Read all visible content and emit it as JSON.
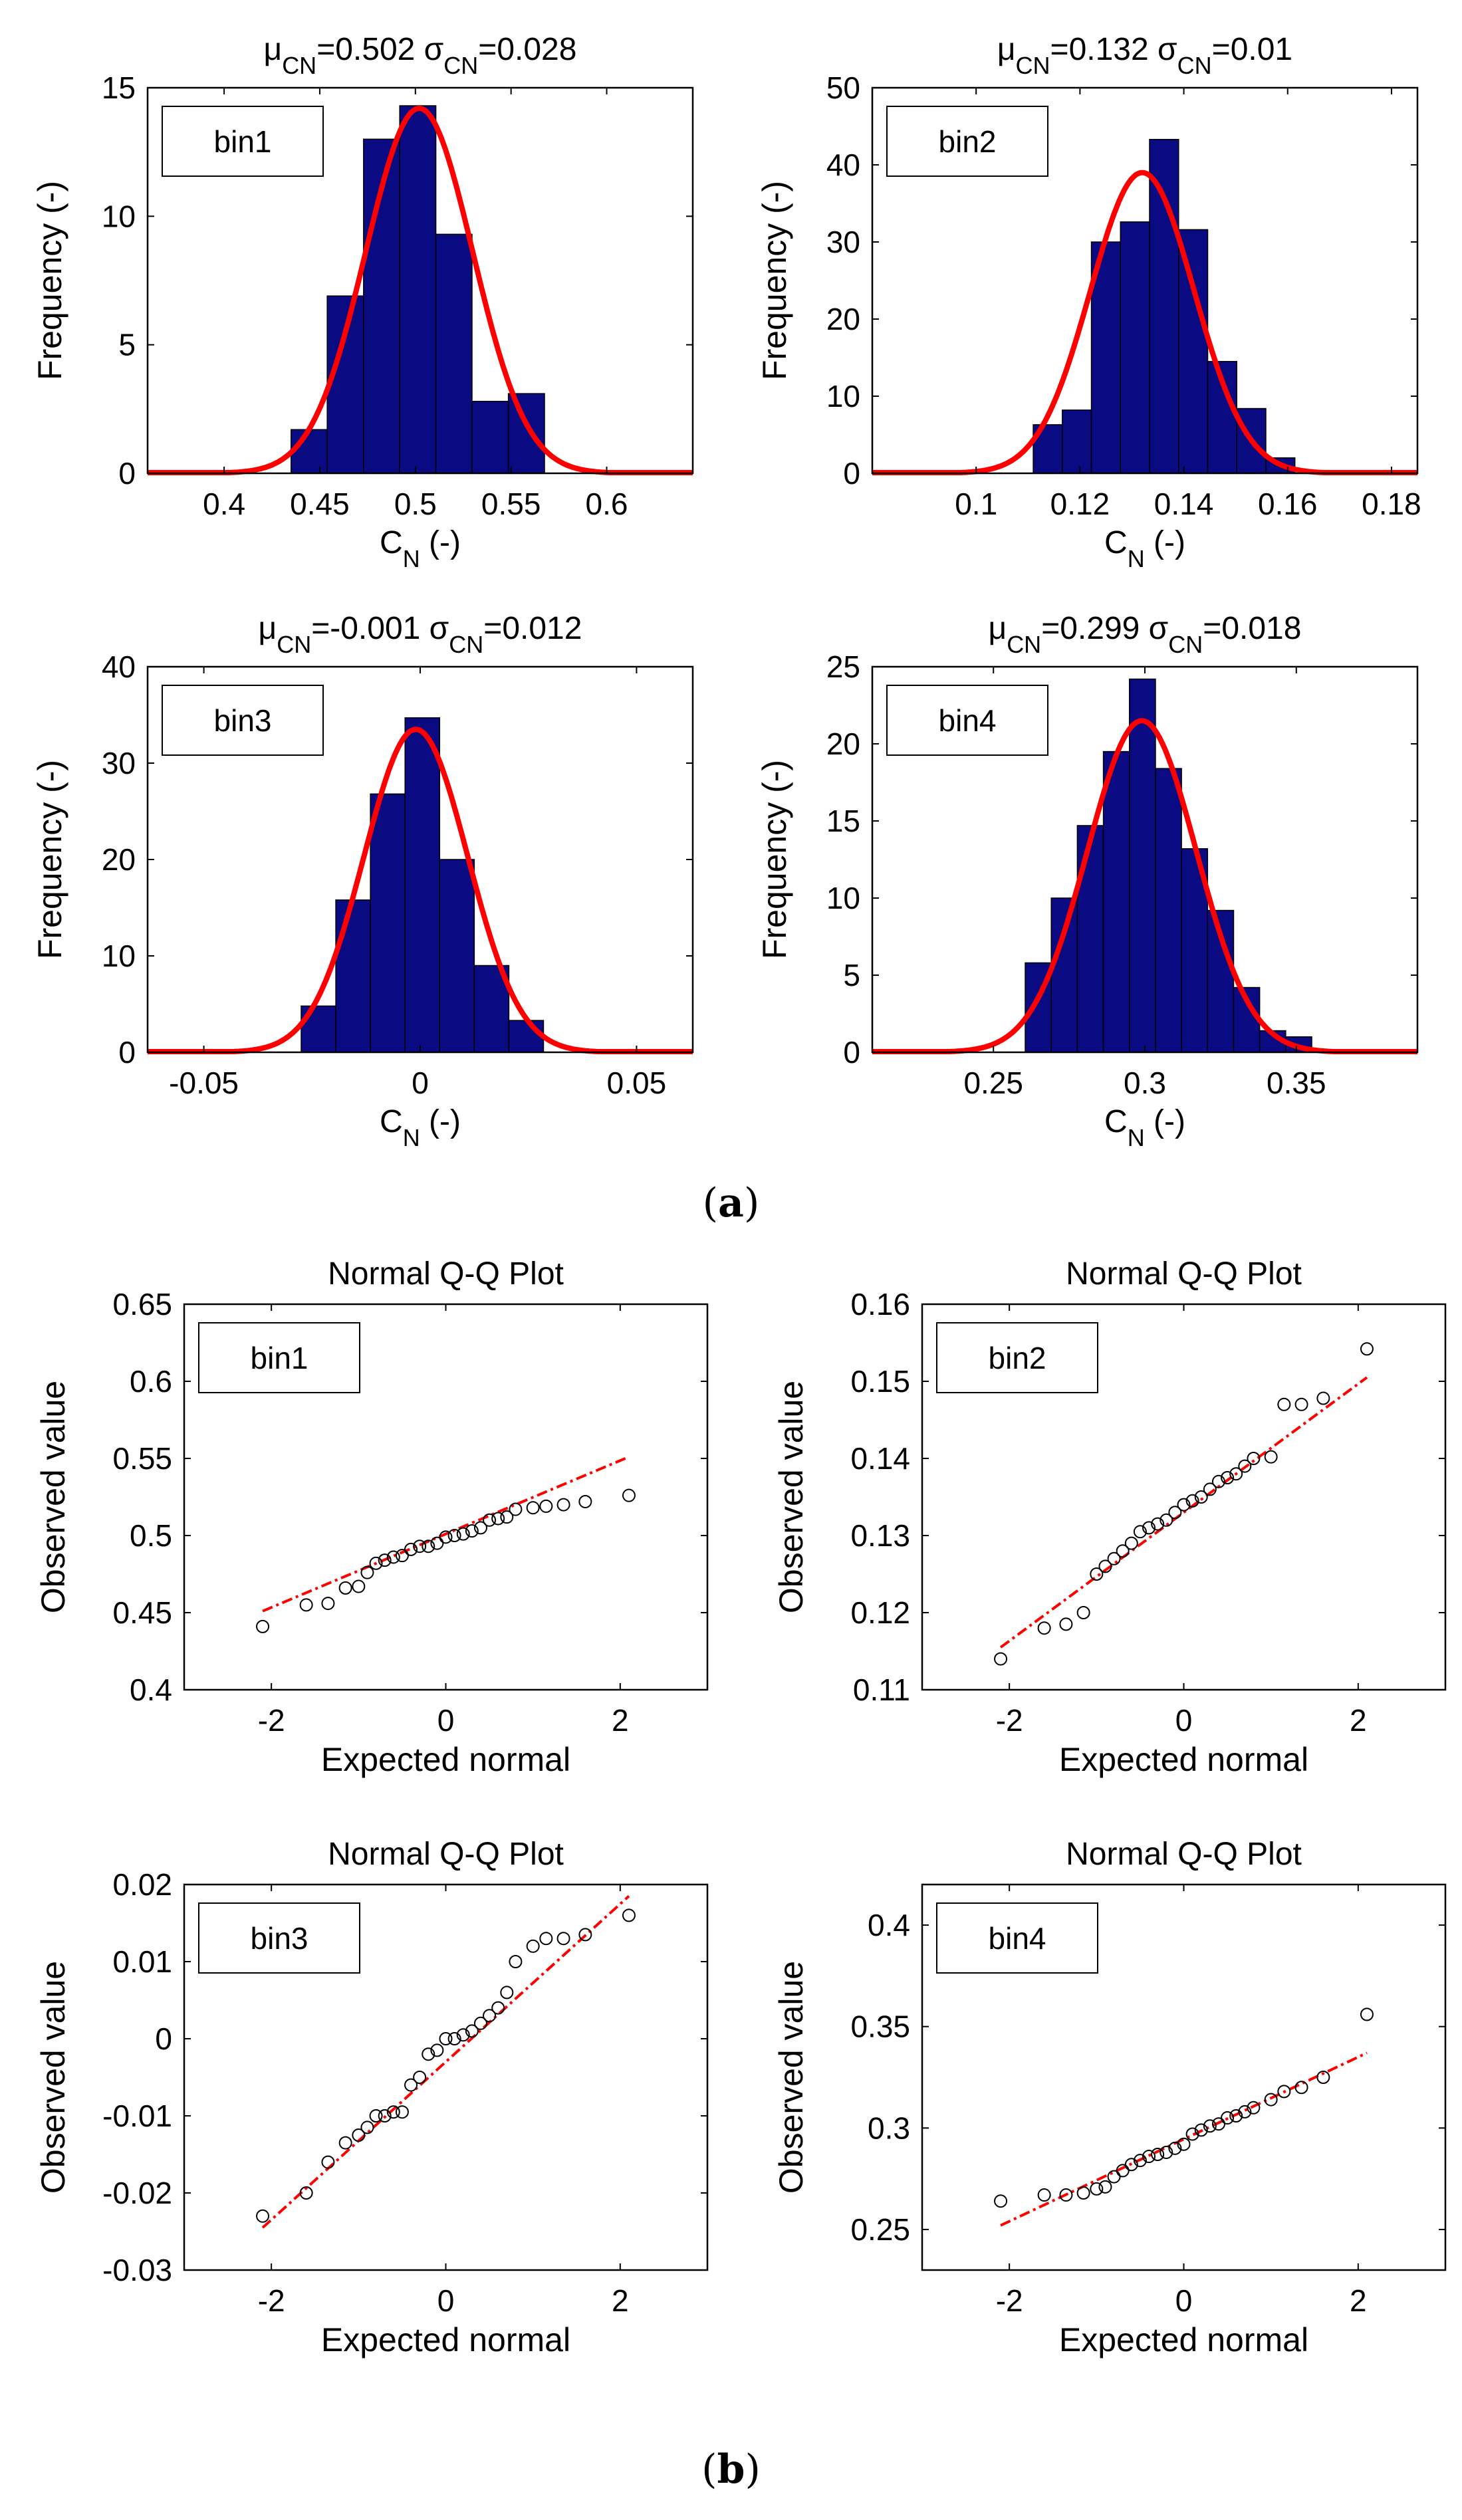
{
  "figure": {
    "label_a": "a",
    "label_b": "b",
    "histogram_ylabel": "Frequency (-)",
    "histogram_xlabel_main": "C",
    "histogram_xlabel_sub": "N",
    "histogram_xlabel_unit": " (-)",
    "qq_title": "Normal Q-Q Plot",
    "qq_xlabel": "Expected normal",
    "qq_ylabel": "Observed value",
    "hist_bar_color": "#0a0a82",
    "fit_line_color": "#ff0000"
  },
  "chart_data": [
    {
      "type": "bar",
      "id": "hist-bin1",
      "legend": "bin1",
      "title_mu": "0.502",
      "title_sigma": "0.028",
      "bin_edges": [
        0.435,
        0.4539,
        0.4729,
        0.4918,
        0.5107,
        0.5296,
        0.5486,
        0.5675
      ],
      "values": [
        1.7,
        6.9,
        13.0,
        14.3,
        9.3,
        2.8,
        3.1
      ],
      "fit_peak": 14.2,
      "xlim": [
        0.36,
        0.645
      ],
      "ylim": [
        0,
        15
      ],
      "xticks": [
        0.4,
        0.45,
        0.5,
        0.55,
        0.6
      ],
      "yticks": [
        0,
        5,
        10,
        15
      ]
    },
    {
      "type": "bar",
      "id": "hist-bin2",
      "legend": "bin2",
      "title_mu": "0.132",
      "title_sigma": "0.01",
      "bin_edges": [
        0.111,
        0.1166,
        0.1222,
        0.1278,
        0.1334,
        0.139,
        0.1446,
        0.1502,
        0.1558,
        0.1614
      ],
      "values": [
        6.3,
        8.2,
        30.0,
        32.6,
        43.3,
        31.6,
        14.5,
        8.4,
        2.0
      ],
      "fit_peak": 39.0,
      "xlim": [
        0.08,
        0.185
      ],
      "ylim": [
        0,
        50
      ],
      "xticks": [
        0.1,
        0.12,
        0.14,
        0.16,
        0.18
      ],
      "yticks": [
        0,
        10,
        20,
        30,
        40,
        50
      ]
    },
    {
      "type": "bar",
      "id": "hist-bin3",
      "legend": "bin3",
      "title_mu": "-0.001",
      "title_sigma": "0.012",
      "bin_edges": [
        -0.0275,
        -0.0195,
        -0.0115,
        -0.0035,
        0.0045,
        0.0125,
        0.0205,
        0.0285
      ],
      "values": [
        4.8,
        15.8,
        26.8,
        34.7,
        20.0,
        9.0,
        3.3
      ],
      "fit_peak": 33.5,
      "xlim": [
        -0.063,
        0.063
      ],
      "ylim": [
        0,
        40
      ],
      "xticks": [
        -0.05,
        0,
        0.05
      ],
      "yticks": [
        0,
        10,
        20,
        30,
        40
      ]
    },
    {
      "type": "bar",
      "id": "hist-bin4",
      "legend": "bin4",
      "title_mu": "0.299",
      "title_sigma": "0.018",
      "bin_edges": [
        0.2605,
        0.2691,
        0.2777,
        0.2863,
        0.2949,
        0.3035,
        0.3121,
        0.3207,
        0.3293,
        0.3379,
        0.3465,
        0.3551
      ],
      "values": [
        5.8,
        10.0,
        14.7,
        19.5,
        24.2,
        18.4,
        13.2,
        9.2,
        4.2,
        1.4,
        1.0
      ],
      "fit_peak": 21.5,
      "xlim": [
        0.21,
        0.39
      ],
      "ylim": [
        0,
        25
      ],
      "xticks": [
        0.25,
        0.3,
        0.35
      ],
      "yticks": [
        0,
        5,
        10,
        15,
        20,
        25
      ]
    },
    {
      "type": "scatter",
      "id": "qq-bin1",
      "legend": "bin1",
      "x": [
        -2.1,
        -1.6,
        -1.35,
        -1.15,
        -1.0,
        -0.9,
        -0.8,
        -0.7,
        -0.6,
        -0.5,
        -0.4,
        -0.3,
        -0.2,
        -0.1,
        0.0,
        0.1,
        0.2,
        0.3,
        0.4,
        0.5,
        0.6,
        0.7,
        0.8,
        1.0,
        1.15,
        1.35,
        1.6,
        2.1
      ],
      "y": [
        0.441,
        0.455,
        0.456,
        0.466,
        0.467,
        0.476,
        0.482,
        0.484,
        0.486,
        0.487,
        0.491,
        0.493,
        0.493,
        0.495,
        0.499,
        0.5,
        0.501,
        0.503,
        0.505,
        0.51,
        0.511,
        0.512,
        0.517,
        0.518,
        0.519,
        0.52,
        0.522,
        0.526
      ],
      "fit_line": {
        "x": [
          -2.1,
          2.1
        ],
        "y": [
          0.451,
          0.551
        ]
      },
      "xlim": [
        -3,
        3
      ],
      "ylim": [
        0.4,
        0.65
      ],
      "xticks": [
        -2,
        0,
        2
      ],
      "yticks": [
        0.4,
        0.45,
        0.5,
        0.55,
        0.6,
        0.65
      ]
    },
    {
      "type": "scatter",
      "id": "qq-bin2",
      "legend": "bin2",
      "x": [
        -2.1,
        -1.6,
        -1.35,
        -1.15,
        -1.0,
        -0.9,
        -0.8,
        -0.7,
        -0.6,
        -0.5,
        -0.4,
        -0.3,
        -0.2,
        -0.1,
        0.0,
        0.1,
        0.2,
        0.3,
        0.4,
        0.5,
        0.6,
        0.7,
        0.8,
        1.0,
        1.15,
        1.35,
        1.6,
        2.1
      ],
      "y": [
        0.114,
        0.118,
        0.1185,
        0.12,
        0.125,
        0.126,
        0.127,
        0.128,
        0.129,
        0.1305,
        0.131,
        0.1315,
        0.132,
        0.133,
        0.134,
        0.1345,
        0.135,
        0.136,
        0.137,
        0.1375,
        0.138,
        0.139,
        0.14,
        0.1402,
        0.147,
        0.147,
        0.1478,
        0.1542
      ],
      "fit_line": {
        "x": [
          -2.1,
          2.1
        ],
        "y": [
          0.1155,
          0.1505
        ]
      },
      "xlim": [
        -3,
        3
      ],
      "ylim": [
        0.11,
        0.16
      ],
      "xticks": [
        -2,
        0,
        2
      ],
      "yticks": [
        0.11,
        0.12,
        0.13,
        0.14,
        0.15,
        0.16
      ]
    },
    {
      "type": "scatter",
      "id": "qq-bin3",
      "legend": "bin3",
      "x": [
        -2.1,
        -1.6,
        -1.35,
        -1.15,
        -1.0,
        -0.9,
        -0.8,
        -0.7,
        -0.6,
        -0.5,
        -0.4,
        -0.3,
        -0.2,
        -0.1,
        0.0,
        0.1,
        0.2,
        0.3,
        0.4,
        0.5,
        0.6,
        0.7,
        0.8,
        1.0,
        1.15,
        1.35,
        1.6,
        2.1
      ],
      "y": [
        -0.023,
        -0.02,
        -0.016,
        -0.0135,
        -0.0125,
        -0.0115,
        -0.01,
        -0.01,
        -0.0095,
        -0.0095,
        -0.006,
        -0.005,
        -0.002,
        -0.0015,
        0.0,
        0.0,
        0.0005,
        0.001,
        0.002,
        0.003,
        0.004,
        0.006,
        0.01,
        0.012,
        0.013,
        0.013,
        0.0135,
        0.016
      ],
      "fit_line": {
        "x": [
          -2.1,
          2.1
        ],
        "y": [
          -0.0245,
          0.0185
        ]
      },
      "xlim": [
        -3,
        3
      ],
      "ylim": [
        -0.03,
        0.02
      ],
      "xticks": [
        -2,
        0,
        2
      ],
      "yticks": [
        -0.03,
        -0.02,
        -0.01,
        0,
        0.01,
        0.02
      ]
    },
    {
      "type": "scatter",
      "id": "qq-bin4",
      "legend": "bin4",
      "x": [
        -2.1,
        -1.6,
        -1.35,
        -1.15,
        -1.0,
        -0.9,
        -0.8,
        -0.7,
        -0.6,
        -0.5,
        -0.4,
        -0.3,
        -0.2,
        -0.1,
        0.0,
        0.1,
        0.2,
        0.3,
        0.4,
        0.5,
        0.6,
        0.7,
        0.8,
        1.0,
        1.15,
        1.35,
        1.6,
        2.1
      ],
      "y": [
        0.264,
        0.267,
        0.267,
        0.268,
        0.27,
        0.271,
        0.276,
        0.279,
        0.282,
        0.284,
        0.286,
        0.287,
        0.288,
        0.29,
        0.292,
        0.297,
        0.299,
        0.301,
        0.302,
        0.305,
        0.306,
        0.308,
        0.31,
        0.314,
        0.318,
        0.32,
        0.325,
        0.356
      ],
      "fit_line": {
        "x": [
          -2.1,
          2.1
        ],
        "y": [
          0.252,
          0.337
        ]
      },
      "xlim": [
        -3,
        3
      ],
      "ylim": [
        0.23,
        0.42
      ],
      "xticks": [
        -2,
        0,
        2
      ],
      "yticks": [
        0.25,
        0.3,
        0.35,
        0.4
      ]
    }
  ]
}
